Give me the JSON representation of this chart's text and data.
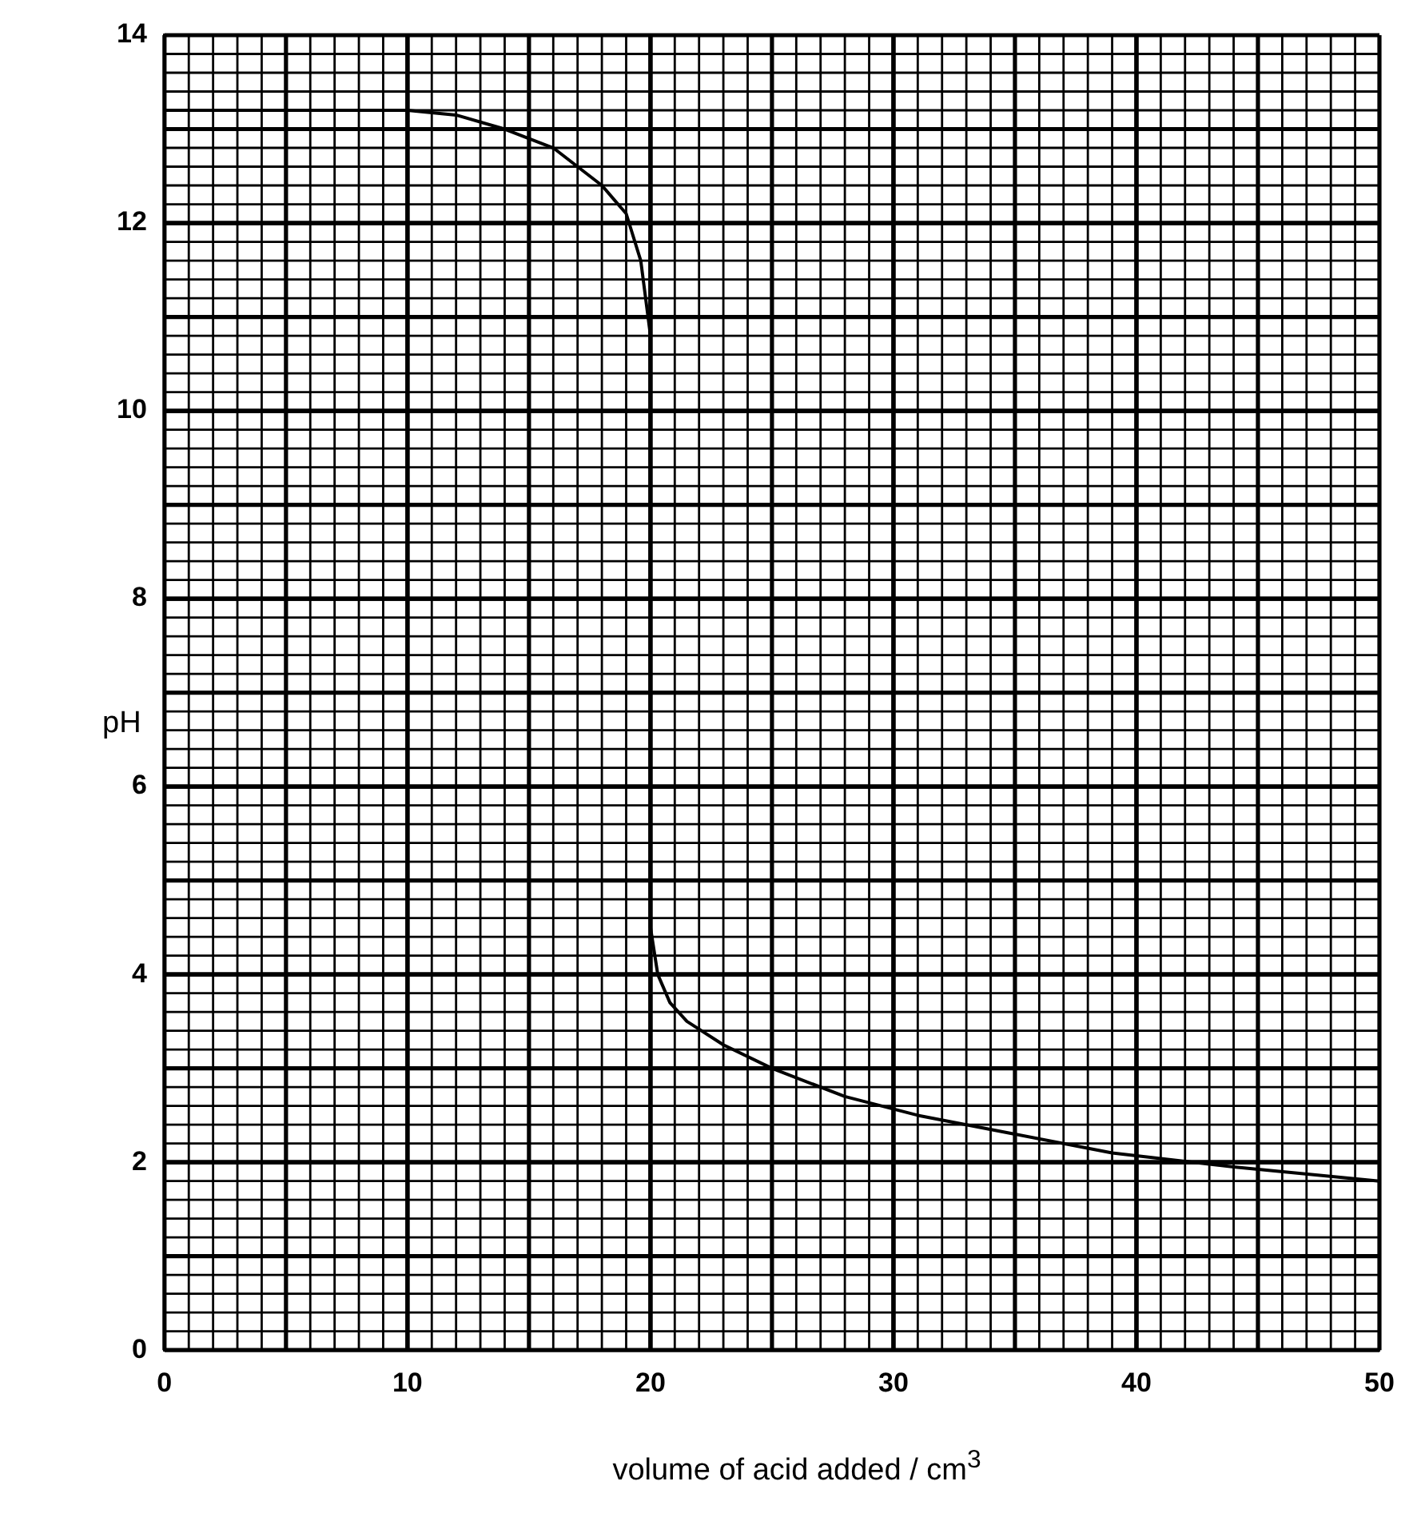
{
  "chart_data": {
    "type": "line",
    "xlabel": "volume of acid added / cm$^{3}$",
    "ylabel": "pH",
    "x": [
      0,
      10,
      12,
      14,
      16,
      17,
      18,
      19,
      19.6,
      20,
      20,
      20.3,
      20.8,
      21.5,
      23,
      25,
      28,
      31,
      35,
      39,
      44,
      50
    ],
    "values": [
      13.2,
      13.2,
      13.15,
      13.0,
      12.8,
      12.6,
      12.4,
      12.1,
      11.6,
      10.8,
      4.5,
      4.0,
      3.7,
      3.5,
      3.25,
      3.0,
      2.7,
      2.5,
      2.3,
      2.1,
      1.95,
      1.8
    ],
    "color": "#000000",
    "xlim": [
      0,
      50
    ],
    "ylim": [
      0,
      14
    ],
    "xticks": [
      0,
      10,
      20,
      30,
      40,
      50
    ],
    "yticks": [
      0,
      2,
      4,
      6,
      8,
      10,
      12,
      14
    ],
    "grid": true,
    "marker": "none",
    "line_style": "solid"
  }
}
